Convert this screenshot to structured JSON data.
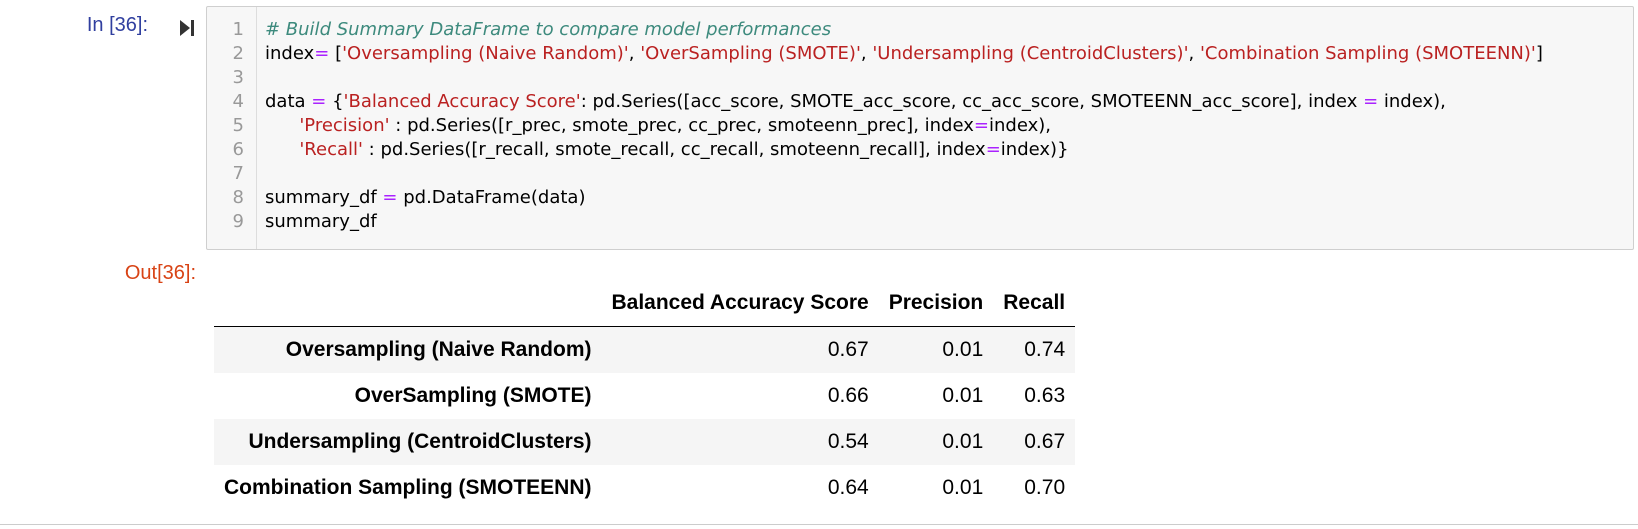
{
  "input": {
    "prompt": "In [36]:",
    "line_numbers": [
      "1",
      "2",
      "3",
      "4",
      "5",
      "6",
      "7",
      "8",
      "9"
    ],
    "lines": [
      [
        {
          "t": "# Build Summary DataFrame to compare model performances",
          "c": "comment"
        }
      ],
      [
        {
          "t": "index",
          "c": ""
        },
        {
          "t": "=",
          "c": "op"
        },
        {
          "t": " [",
          "c": ""
        },
        {
          "t": "'Oversampling (Naive Random)'",
          "c": "str"
        },
        {
          "t": ", ",
          "c": ""
        },
        {
          "t": "'OverSampling (SMOTE)'",
          "c": "str"
        },
        {
          "t": ", ",
          "c": ""
        },
        {
          "t": "'Undersampling (CentroidClusters)'",
          "c": "str"
        },
        {
          "t": ", ",
          "c": ""
        },
        {
          "t": "'Combination Sampling (SMOTEENN)'",
          "c": "str"
        },
        {
          "t": "]",
          "c": ""
        }
      ],
      [],
      [
        {
          "t": "data ",
          "c": ""
        },
        {
          "t": "=",
          "c": "op"
        },
        {
          "t": " {",
          "c": ""
        },
        {
          "t": "'Balanced Accuracy Score'",
          "c": "str"
        },
        {
          "t": ": pd.Series([acc_score, SMOTE_acc_score, cc_acc_score, SMOTEENN_acc_score], index ",
          "c": ""
        },
        {
          "t": "=",
          "c": "op"
        },
        {
          "t": " index),",
          "c": ""
        }
      ],
      [
        {
          "t": "      ",
          "c": ""
        },
        {
          "t": "'Precision'",
          "c": "str"
        },
        {
          "t": " : pd.Series([r_prec, smote_prec, cc_prec, smoteenn_prec], index",
          "c": ""
        },
        {
          "t": "=",
          "c": "op"
        },
        {
          "t": "index),",
          "c": ""
        }
      ],
      [
        {
          "t": "      ",
          "c": ""
        },
        {
          "t": "'Recall'",
          "c": "str"
        },
        {
          "t": " : pd.Series([r_recall, smote_recall, cc_recall, smoteenn_recall], index",
          "c": ""
        },
        {
          "t": "=",
          "c": "op"
        },
        {
          "t": "index)}",
          "c": ""
        }
      ],
      [],
      [
        {
          "t": "summary_df ",
          "c": ""
        },
        {
          "t": "=",
          "c": "op"
        },
        {
          "t": " pd.DataFrame(data)",
          "c": ""
        }
      ],
      [
        {
          "t": "summary_df",
          "c": ""
        }
      ]
    ]
  },
  "output": {
    "prompt": "Out[36]:",
    "table": {
      "columns": [
        "Balanced Accuracy Score",
        "Precision",
        "Recall"
      ],
      "rows": [
        {
          "index": "Oversampling (Naive Random)",
          "values": [
            "0.67",
            "0.01",
            "0.74"
          ]
        },
        {
          "index": "OverSampling (SMOTE)",
          "values": [
            "0.66",
            "0.01",
            "0.63"
          ]
        },
        {
          "index": "Undersampling (CentroidClusters)",
          "values": [
            "0.54",
            "0.01",
            "0.67"
          ]
        },
        {
          "index": "Combination Sampling (SMOTEENN)",
          "values": [
            "0.64",
            "0.01",
            "0.70"
          ]
        }
      ]
    }
  },
  "icons": {
    "run": "step-run-icon"
  },
  "colors": {
    "in_prompt": "#303f9f",
    "out_prompt": "#d84315",
    "comment": "#3d8a7d",
    "string": "#ba2121",
    "operator": "#aa22ff"
  }
}
